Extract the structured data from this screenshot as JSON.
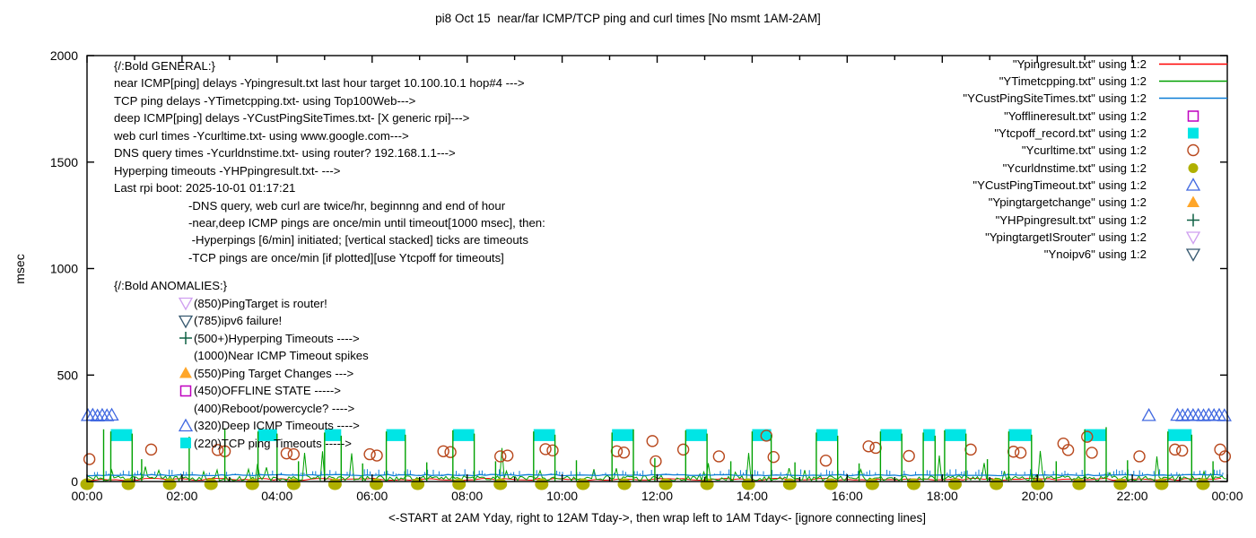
{
  "title": "pi8 Oct 15  near/far ICMP/TCP ping and curl times [No msmt 1AM-2AM]",
  "axes": {
    "ylabel": "msec",
    "yticks": [
      0,
      500,
      1000,
      1500,
      2000
    ],
    "xticks": [
      "00:00",
      "02:00",
      "04:00",
      "06:00",
      "08:00",
      "10:00",
      "12:00",
      "14:00",
      "16:00",
      "18:00",
      "20:00",
      "22:00",
      "00:00"
    ],
    "xlabel": "<-START at 2AM Yday, right to 12AM Tday->, then wrap left to 1AM Tday<- [ignore connecting lines]"
  },
  "general_block": [
    {
      "text": "{/:Bold GENERAL:}",
      "indent": 0
    },
    {
      "text": "near ICMP[ping] delays -Ypingresult.txt last hour target 10.100.10.1 hop#4 --->",
      "indent": 0
    },
    {
      "text": "TCP ping delays -YTimetcpping.txt- using Top100Web--->",
      "indent": 0
    },
    {
      "text": "deep ICMP[ping] delays -YCustPingSiteTimes.txt- [X generic rpi]--->",
      "indent": 0
    },
    {
      "text": "web curl times -Ycurltime.txt- using www.google.com--->",
      "indent": 0
    },
    {
      "text": "DNS query times -Ycurldnstime.txt- using router? 192.168.1.1--->",
      "indent": 0
    },
    {
      "text": "Hyperping timeouts -YHPpingresult.txt- --->",
      "indent": 0
    },
    {
      "text": "Last rpi boot: 2025-10-01 01:17:21",
      "indent": 0
    },
    {
      "text": "-DNS query, web curl are twice/hr, beginnng and end of hour",
      "indent": 1
    },
    {
      "text": "-near,deep ICMP pings are once/min until timeout[1000 msec], then:",
      "indent": 1
    },
    {
      "text": " -Hyperpings [6/min] initiated; [vertical stacked] ticks are timeouts",
      "indent": 1
    },
    {
      "text": "-TCP pings are once/min [if plotted][use Ytcpoff for timeouts]",
      "indent": 1
    }
  ],
  "anomalies_block": {
    "header": "{/:Bold ANOMALIES:}",
    "items": [
      {
        "marker": "open-triangle-down",
        "color": "#cf9ff0",
        "text": "(850)PingTarget is router!"
      },
      {
        "marker": "open-triangle-down",
        "color": "#36586f",
        "text": "(785)ipv6 failure!"
      },
      {
        "marker": "plus",
        "color": "#0e6044",
        "text": "(500+)Hyperping Timeouts ---->"
      },
      {
        "marker": "none",
        "color": "",
        "text": "(1000)Near ICMP Timeout spikes"
      },
      {
        "marker": "filled-triangle-up",
        "color": "#ffa629",
        "text": "(550)Ping Target Changes --->"
      },
      {
        "marker": "open-square",
        "color": "#bf00bf",
        "text": "(450)OFFLINE STATE ----->"
      },
      {
        "marker": "none",
        "color": "",
        "text": "(400)Reboot/powercycle? ---->"
      },
      {
        "marker": "open-triangle-up",
        "color": "#4169e1",
        "text": "(320)Deep ICMP Timeouts ---->"
      },
      {
        "marker": "filled-square",
        "color": "#00e5e5",
        "text": "(220)TCP ping Timeouts ----->"
      }
    ]
  },
  "chart_data": {
    "type": "line+scatter",
    "title": "pi8 Oct 15  near/far ICMP/TCP ping and curl times [No msmt 1AM-2AM]",
    "xlabel": "<-START at 2AM Yday, right to 12AM Tday->, then wrap left to 1AM Tday<- [ignore connecting lines]",
    "ylabel": "msec",
    "ylim": [
      0,
      2000
    ],
    "x_hours_range": [
      0,
      24
    ],
    "grid": false,
    "legend_position": "top-right-inside",
    "series": [
      {
        "name": "\"Ypingresult.txt\" using 1:2",
        "legend_marker": "line",
        "color": "#ff0000",
        "render": "baseline",
        "base": 10,
        "amp": 5
      },
      {
        "name": "\"YTimetcpping.txt\" using 1:2",
        "legend_marker": "line",
        "color": "#00a000",
        "render": "baseline-noisy",
        "base": 14,
        "amp": 24
      },
      {
        "name": "\"YCustPingSiteTimes.txt\" using 1:2",
        "legend_marker": "line",
        "color": "#0c7cd6",
        "render": "baseline-ticked",
        "base": 30,
        "amp": 6,
        "tick_max": 26
      },
      {
        "name": "\"Yofflineresult.txt\" using 1:2",
        "legend_marker": "open-square",
        "color": "#bf00bf",
        "render": "points",
        "marker": "open-square",
        "points": []
      },
      {
        "name": "\"Ytcpoff_record.txt\" using 1:2",
        "legend_marker": "filled-square",
        "color": "#00e5e5",
        "render": "blocks",
        "value_band": [
          190,
          246
        ],
        "ranges": [
          [
            0.5,
            0.95
          ],
          [
            3.6,
            4.0
          ],
          [
            5.0,
            5.35
          ],
          [
            6.3,
            6.7
          ],
          [
            7.7,
            8.15
          ],
          [
            9.4,
            9.85
          ],
          [
            11.05,
            11.5
          ],
          [
            12.6,
            13.05
          ],
          [
            14.0,
            14.4
          ],
          [
            15.35,
            15.8
          ],
          [
            16.7,
            17.15
          ],
          [
            17.6,
            17.85
          ],
          [
            18.05,
            18.5
          ],
          [
            19.4,
            19.88
          ],
          [
            21.0,
            21.45
          ],
          [
            22.75,
            23.25
          ]
        ]
      },
      {
        "name": "\"Ycurltime.txt\" using 1:2",
        "legend_marker": "open-circle",
        "color": "#b8481d",
        "render": "points",
        "marker": "open-circle",
        "points": [
          [
            0.05,
            105
          ],
          [
            1.35,
            150
          ],
          [
            2.75,
            148
          ],
          [
            2.9,
            142
          ],
          [
            4.2,
            132
          ],
          [
            4.35,
            128
          ],
          [
            5.95,
            128
          ],
          [
            6.1,
            122
          ],
          [
            7.5,
            142
          ],
          [
            7.65,
            138
          ],
          [
            8.7,
            118
          ],
          [
            8.85,
            122
          ],
          [
            9.65,
            152
          ],
          [
            9.8,
            146
          ],
          [
            11.15,
            142
          ],
          [
            11.3,
            136
          ],
          [
            11.9,
            190
          ],
          [
            11.97,
            95
          ],
          [
            12.55,
            150
          ],
          [
            13.3,
            118
          ],
          [
            14.3,
            215
          ],
          [
            14.45,
            115
          ],
          [
            15.55,
            98
          ],
          [
            16.45,
            165
          ],
          [
            16.6,
            158
          ],
          [
            17.3,
            120
          ],
          [
            18.6,
            150
          ],
          [
            19.5,
            140
          ],
          [
            19.65,
            135
          ],
          [
            20.55,
            178
          ],
          [
            20.65,
            148
          ],
          [
            21.05,
            210
          ],
          [
            21.15,
            135
          ],
          [
            22.15,
            118
          ],
          [
            22.9,
            150
          ],
          [
            23.05,
            145
          ],
          [
            23.85,
            150
          ],
          [
            23.95,
            118
          ]
        ]
      },
      {
        "name": "\"Ycurldnstime.txt\" using 1:2",
        "legend_marker": "filled-circle",
        "color": "#b0b000",
        "render": "repeat-points",
        "marker": "filled-circle",
        "value": 0,
        "start": 0,
        "end": 24,
        "step": 0.87
      },
      {
        "name": "\"YCustPingTimeout.txt\" using 1:2",
        "legend_marker": "open-triangle-up",
        "color": "#4169e1",
        "render": "points",
        "marker": "open-triangle-up",
        "points": [
          [
            0.02,
            310
          ],
          [
            0.12,
            312
          ],
          [
            0.22,
            308
          ],
          [
            0.32,
            311
          ],
          [
            0.42,
            309
          ],
          [
            0.52,
            312
          ],
          [
            22.35,
            310
          ],
          [
            22.95,
            311
          ],
          [
            23.06,
            309
          ],
          [
            23.17,
            312
          ],
          [
            23.28,
            310
          ],
          [
            23.39,
            311
          ],
          [
            23.5,
            309
          ],
          [
            23.61,
            312
          ],
          [
            23.72,
            310
          ],
          [
            23.83,
            311
          ],
          [
            23.94,
            309
          ]
        ]
      },
      {
        "name": "\"Ypingtargetchange\" using 1:2",
        "legend_marker": "filled-triangle-up",
        "color": "#ffa629",
        "render": "points",
        "marker": "filled-triangle-up",
        "points": []
      },
      {
        "name": "\"YHPpingresult.txt\" using 1:2",
        "legend_marker": "plus",
        "color": "#0e6044",
        "render": "vspikes",
        "spike_color": "#00a000",
        "spikes": [
          [
            0.35,
            245
          ],
          [
            0.5,
            235
          ],
          [
            0.95,
            225
          ],
          [
            1.15,
            105
          ],
          [
            2.15,
            210
          ],
          [
            2.9,
            250
          ],
          [
            3.6,
            235
          ],
          [
            4.0,
            225
          ],
          [
            4.45,
            95
          ],
          [
            5.0,
            230
          ],
          [
            5.35,
            215
          ],
          [
            5.8,
            85
          ],
          [
            6.3,
            235
          ],
          [
            6.7,
            220
          ],
          [
            7.15,
            90
          ],
          [
            7.7,
            240
          ],
          [
            8.15,
            225
          ],
          [
            8.6,
            95
          ],
          [
            9.4,
            235
          ],
          [
            9.85,
            220
          ],
          [
            10.3,
            100
          ],
          [
            11.05,
            230
          ],
          [
            11.5,
            245
          ],
          [
            11.95,
            110
          ],
          [
            12.6,
            240
          ],
          [
            13.05,
            225
          ],
          [
            13.55,
            95
          ],
          [
            14.0,
            235
          ],
          [
            14.4,
            220
          ],
          [
            14.9,
            90
          ],
          [
            15.35,
            230
          ],
          [
            15.8,
            215
          ],
          [
            16.25,
            85
          ],
          [
            16.7,
            235
          ],
          [
            17.15,
            225
          ],
          [
            17.6,
            230
          ],
          [
            17.85,
            215
          ],
          [
            18.05,
            240
          ],
          [
            18.5,
            225
          ],
          [
            18.95,
            105
          ],
          [
            19.4,
            235
          ],
          [
            19.88,
            220
          ],
          [
            20.4,
            95
          ],
          [
            21.0,
            245
          ],
          [
            21.45,
            255
          ],
          [
            21.9,
            100
          ],
          [
            22.75,
            235
          ],
          [
            23.25,
            220
          ],
          [
            23.7,
            95
          ]
        ]
      },
      {
        "name": "\"YpingtargetISrouter\" using 1:2",
        "legend_marker": "open-triangle-down",
        "color": "#cf9ff0",
        "render": "points",
        "marker": "open-triangle-down",
        "points": []
      },
      {
        "name": "\"Ynoipv6\" using 1:2",
        "legend_marker": "open-triangle-down",
        "color": "#36586f",
        "render": "points",
        "marker": "open-triangle-down",
        "points": []
      }
    ]
  }
}
